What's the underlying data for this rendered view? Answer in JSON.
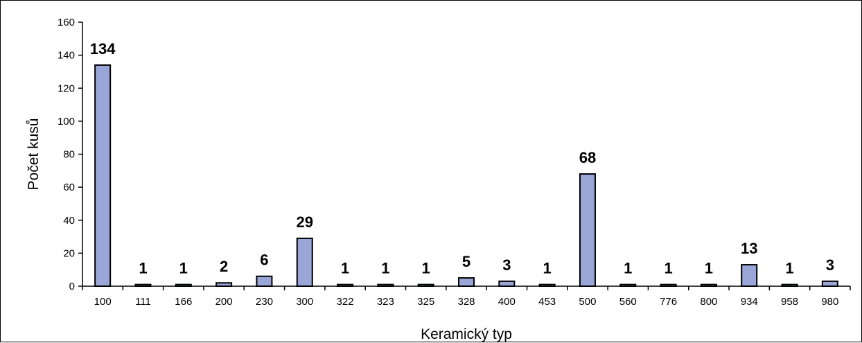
{
  "chart_data": {
    "type": "bar",
    "xlabel": "Keramický typ",
    "ylabel": "Počet kusů",
    "ylim": [
      0,
      160
    ],
    "yticks": [
      0,
      20,
      40,
      60,
      80,
      100,
      120,
      140,
      160
    ],
    "grid": false,
    "legend": "none",
    "bar_color": "#9AA6D8",
    "categories": [
      "100",
      "111",
      "166",
      "200",
      "230",
      "300",
      "322",
      "323",
      "325",
      "328",
      "400",
      "453",
      "500",
      "560",
      "776",
      "800",
      "934",
      "958",
      "980"
    ],
    "values": [
      134,
      1,
      1,
      2,
      6,
      29,
      1,
      1,
      1,
      5,
      3,
      1,
      68,
      1,
      1,
      1,
      13,
      1,
      3
    ],
    "data_labels": [
      "134",
      "1",
      "1",
      "2",
      "6",
      "29",
      "1",
      "1",
      "1",
      "5",
      "3",
      "1",
      "68",
      "1",
      "1",
      "1",
      "13",
      "1",
      "3"
    ]
  }
}
